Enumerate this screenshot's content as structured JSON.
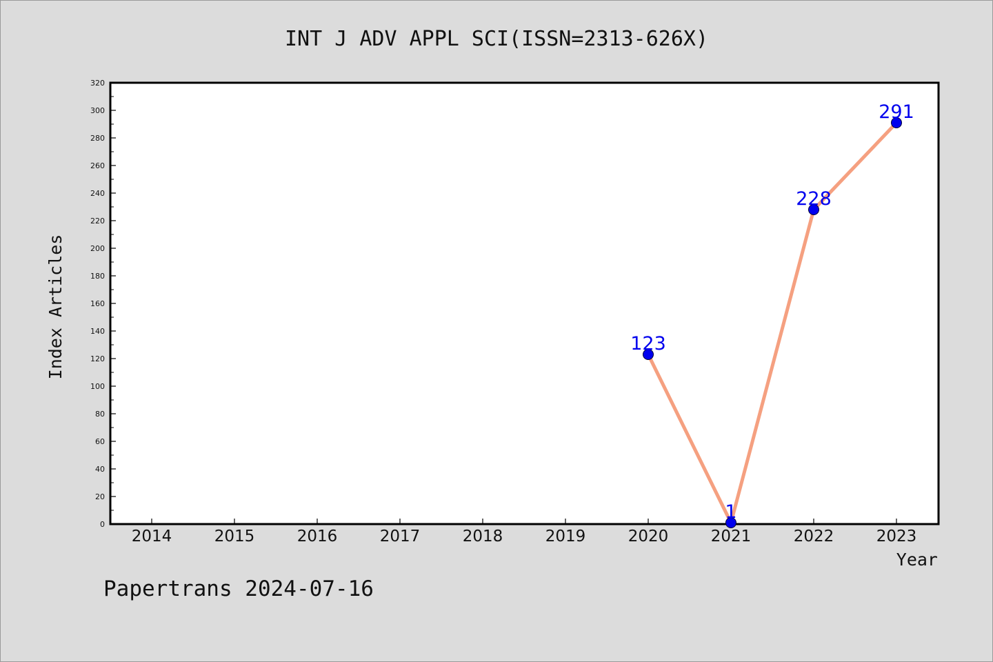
{
  "footer": {
    "text": "Papertrans 2024-07-16"
  },
  "colors": {
    "background": "#dcdcdc",
    "plot_background": "#ffffff",
    "line": "#f5a080",
    "marker": "#0000ee",
    "label": "#0000ee"
  },
  "chart_data": {
    "type": "line",
    "title": "INT J ADV APPL SCI(ISSN=2313-626X)",
    "xlabel": "Year",
    "ylabel": "Index Articles",
    "categories": [
      "2014",
      "2015",
      "2016",
      "2017",
      "2018",
      "2019",
      "2020",
      "2021",
      "2022",
      "2023"
    ],
    "ylim": [
      0,
      320
    ],
    "yticks": [
      0,
      20,
      40,
      60,
      80,
      100,
      120,
      140,
      160,
      180,
      200,
      220,
      240,
      260,
      280,
      300,
      320
    ],
    "series": [
      {
        "x": [
          "2020",
          "2021",
          "2022",
          "2023"
        ],
        "values": [
          123,
          1,
          228,
          291
        ],
        "labels": [
          "123",
          "1",
          "228",
          "291"
        ]
      }
    ],
    "grid": false,
    "legend": "none"
  }
}
